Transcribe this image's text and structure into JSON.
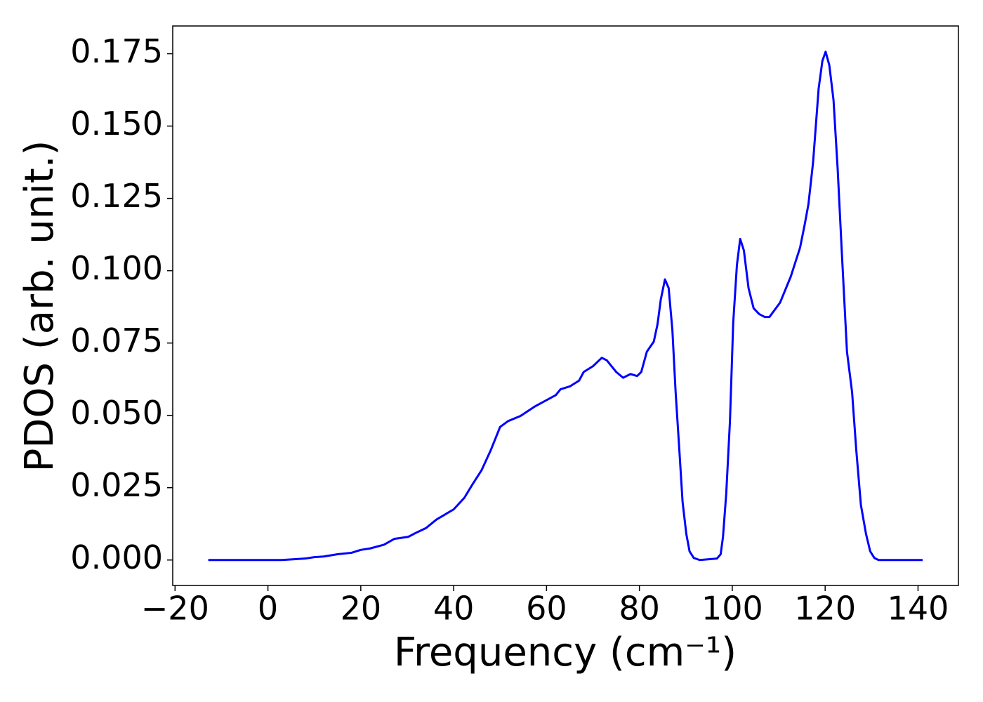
{
  "chart_data": {
    "type": "line",
    "xlabel": "Frequency (cm⁻¹)",
    "ylabel": "PDOS (arb. unit.)",
    "xlim": [
      -20.5,
      148.7
    ],
    "ylim": [
      -0.0088,
      0.1846
    ],
    "xticks": [
      {
        "value": -20,
        "label": "−20"
      },
      0,
      20,
      40,
      60,
      80,
      100,
      120,
      140
    ],
    "yticks": [
      {
        "value": 0,
        "label": "0.000"
      },
      {
        "value": 0.025,
        "label": "0.025"
      },
      {
        "value": 0.05,
        "label": "0.050"
      },
      {
        "value": 0.075,
        "label": "0.075"
      },
      {
        "value": 0.1,
        "label": "0.100"
      },
      {
        "value": 0.125,
        "label": "0.125"
      },
      {
        "value": 0.15,
        "label": "0.150"
      },
      {
        "value": 0.175,
        "label": "0.175"
      }
    ],
    "series": [
      {
        "color": "#0000ff",
        "x": [
          -12.85,
          0,
          3,
          8,
          10,
          12,
          15,
          18,
          20,
          22,
          25,
          27.2,
          30.2,
          32,
          34,
          36.3,
          40,
          42.3,
          44,
          46,
          48,
          50,
          51.7,
          54.4,
          57.4,
          59.7,
          62,
          63,
          65,
          67,
          68,
          69,
          70,
          71.9,
          73,
          74,
          75,
          76.5,
          78.1,
          79.5,
          80.4,
          81.6,
          83.1,
          83.9,
          84.6,
          85.5,
          86.3,
          87.1,
          87.8,
          88.6,
          89.3,
          90.1,
          90.8,
          91.7,
          93,
          96.7,
          97.5,
          98,
          98.7,
          99.5,
          100.2,
          101,
          101.7,
          102.5,
          103.5,
          104.6,
          105.8,
          107,
          108,
          110.3,
          112.6,
          114.6,
          115.6,
          116.4,
          117.4,
          118.6,
          119.4,
          120.1,
          120.9,
          121.8,
          122.7,
          123.6,
          124.7,
          125.8,
          126.7,
          127.7,
          128.8,
          129.7,
          130.6,
          131.5,
          141
        ],
        "values": [
          0,
          0,
          0,
          0.0005,
          0.001,
          0.0012,
          0.002,
          0.0025,
          0.0035,
          0.004,
          0.0053,
          0.0073,
          0.008,
          0.0095,
          0.011,
          0.014,
          0.0175,
          0.0215,
          0.026,
          0.031,
          0.038,
          0.046,
          0.048,
          0.0498,
          0.053,
          0.055,
          0.057,
          0.059,
          0.06,
          0.062,
          0.065,
          0.066,
          0.067,
          0.0699,
          0.069,
          0.067,
          0.065,
          0.063,
          0.0643,
          0.0636,
          0.065,
          0.072,
          0.0755,
          0.0815,
          0.09,
          0.097,
          0.094,
          0.0795,
          0.058,
          0.038,
          0.02,
          0.009,
          0.003,
          0.0007,
          0,
          0.0005,
          0.002,
          0.008,
          0.023,
          0.048,
          0.082,
          0.102,
          0.111,
          0.107,
          0.094,
          0.087,
          0.085,
          0.084,
          0.084,
          0.089,
          0.098,
          0.108,
          0.116,
          0.123,
          0.1375,
          0.163,
          0.1725,
          0.1757,
          0.171,
          0.159,
          0.135,
          0.106,
          0.072,
          0.058,
          0.038,
          0.019,
          0.009,
          0.003,
          0.0007,
          0,
          0
        ]
      }
    ]
  }
}
